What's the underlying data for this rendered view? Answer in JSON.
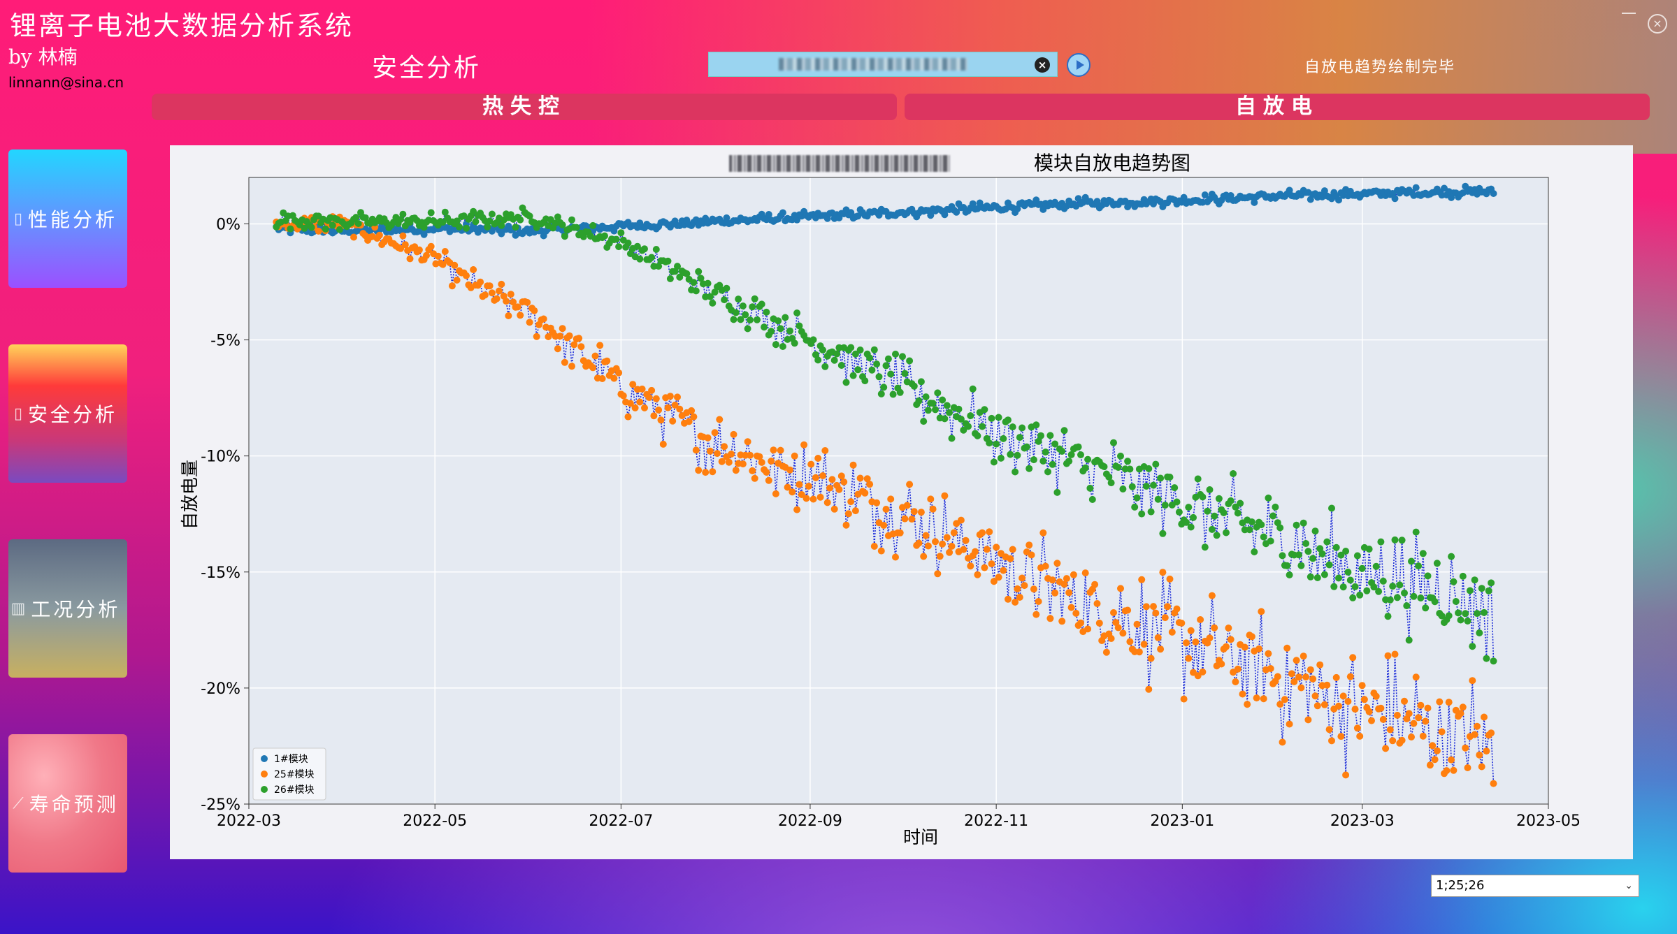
{
  "app": {
    "title": "锂离子电池大数据分析系统",
    "byline": "by 林楠",
    "email": "linnann@sina.cn",
    "section_title": "安全分析",
    "status": "自放电趋势绘制完毕"
  },
  "window_controls": {
    "minimize": "—",
    "close": "×"
  },
  "search": {
    "clear_icon": "×"
  },
  "tabs": [
    {
      "label": "热失控"
    },
    {
      "label": "自放电"
    }
  ],
  "sidebar": {
    "items": [
      {
        "label": "性能分析",
        "icon": "battery-icon"
      },
      {
        "label": "安全分析",
        "icon": "battery-icon"
      },
      {
        "label": "工况分析",
        "icon": "bar-chart-icon"
      },
      {
        "label": "寿命预测",
        "icon": "line-chart-icon"
      }
    ]
  },
  "dropdown": {
    "value": "1;25;26"
  },
  "chart_data": {
    "type": "scatter",
    "title": "模块自放电趋势图",
    "xlabel": "时间",
    "ylabel": "自放电量",
    "x_ticks": [
      "2022-03",
      "2022-05",
      "2022-07",
      "2022-09",
      "2022-11",
      "2023-01",
      "2023-03",
      "2023-05"
    ],
    "y_ticks": [
      "0%",
      "-5%",
      "-10%",
      "-15%",
      "-20%",
      "-25%"
    ],
    "xlim": [
      "2022-03-01",
      "2023-05-01"
    ],
    "ylim": [
      -25,
      2
    ],
    "legend_position": "bottom-left",
    "grid": true,
    "connector": "blue dotted line",
    "series": [
      {
        "name": "1#模块",
        "color": "#1f77b4",
        "points": [
          [
            "2022-03-10",
            -0.2
          ],
          [
            "2022-04-01",
            -0.3
          ],
          [
            "2022-05-01",
            -0.2
          ],
          [
            "2022-06-01",
            -0.3
          ],
          [
            "2022-07-01",
            -0.1
          ],
          [
            "2022-08-01",
            0.1
          ],
          [
            "2022-09-01",
            0.3
          ],
          [
            "2022-10-01",
            0.5
          ],
          [
            "2022-11-01",
            0.7
          ],
          [
            "2022-12-01",
            0.9
          ],
          [
            "2023-01-01",
            1.0
          ],
          [
            "2023-02-01",
            1.2
          ],
          [
            "2023-03-01",
            1.3
          ],
          [
            "2023-04-13",
            1.4
          ]
        ]
      },
      {
        "name": "25#模块",
        "color": "#ff7f0e",
        "points": [
          [
            "2022-03-10",
            0.0
          ],
          [
            "2022-04-01",
            0.0
          ],
          [
            "2022-05-01",
            -1.5
          ],
          [
            "2022-05-15",
            -2.8
          ],
          [
            "2022-06-01",
            -3.8
          ],
          [
            "2022-07-01",
            -7.0
          ],
          [
            "2022-08-01",
            -9.5
          ],
          [
            "2022-09-01",
            -11.0
          ],
          [
            "2022-10-01",
            -12.5
          ],
          [
            "2022-11-01",
            -14.5
          ],
          [
            "2022-12-01",
            -16.5
          ],
          [
            "2023-01-01",
            -18.0
          ],
          [
            "2023-02-01",
            -19.5
          ],
          [
            "2023-03-01",
            -21.0
          ],
          [
            "2023-04-13",
            -22.5
          ]
        ]
      },
      {
        "name": "26#模块",
        "color": "#2ca02c",
        "points": [
          [
            "2022-03-10",
            0.2
          ],
          [
            "2022-04-01",
            0.1
          ],
          [
            "2022-05-01",
            0.1
          ],
          [
            "2022-06-01",
            0.3
          ],
          [
            "2022-07-01",
            -0.8
          ],
          [
            "2022-08-01",
            -3.0
          ],
          [
            "2022-09-01",
            -5.0
          ],
          [
            "2022-10-01",
            -7.0
          ],
          [
            "2022-11-01",
            -9.0
          ],
          [
            "2022-12-01",
            -10.5
          ],
          [
            "2023-01-01",
            -12.0
          ],
          [
            "2023-02-01",
            -13.5
          ],
          [
            "2023-03-01",
            -15.0
          ],
          [
            "2023-04-13",
            -16.5
          ]
        ]
      }
    ]
  }
}
